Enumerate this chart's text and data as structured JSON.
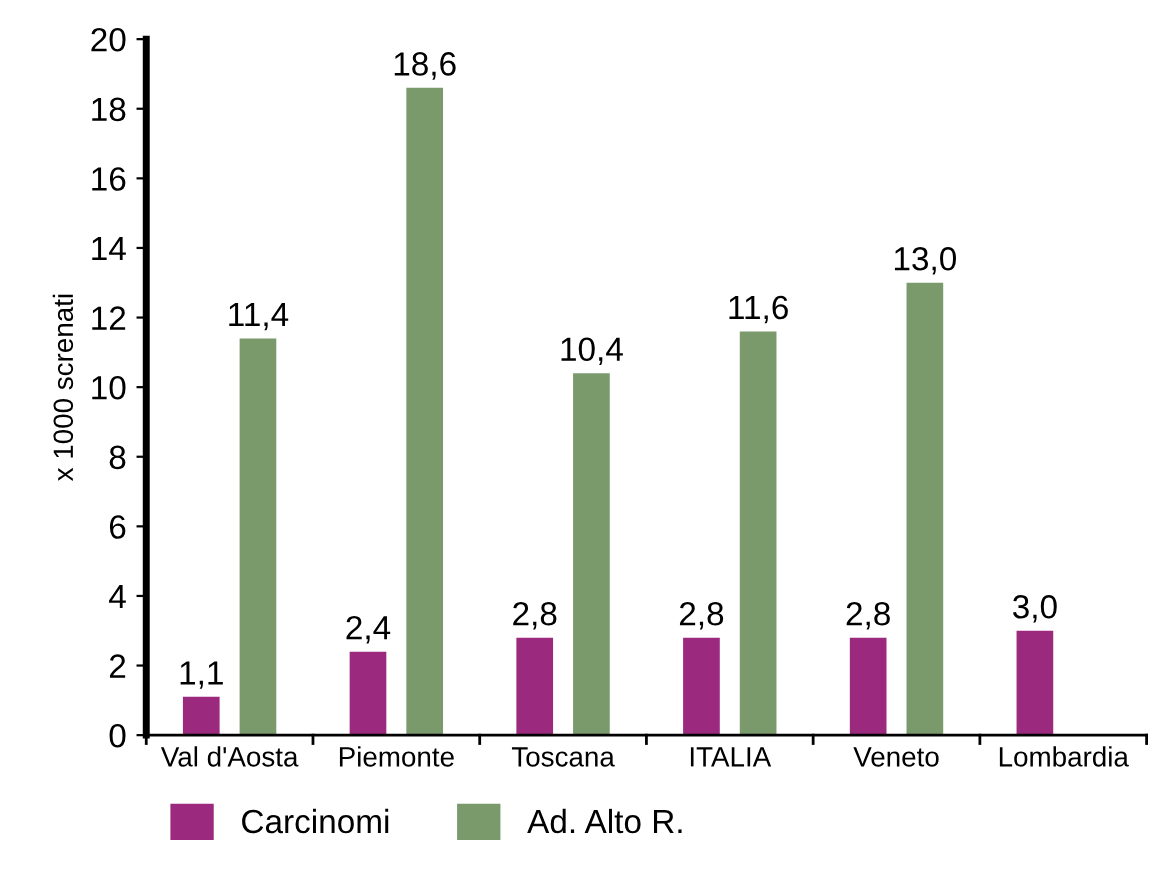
{
  "chart_data": {
    "type": "bar",
    "ylabel": "x 1000 screnati",
    "categories": [
      "Val d'Aosta",
      "Piemonte",
      "Toscana",
      "ITALIA",
      "Veneto",
      "Lombardia"
    ],
    "series": [
      {
        "name": "Carcinomi",
        "color": "#9b2a7e",
        "values": [
          1.1,
          2.4,
          2.8,
          2.8,
          2.8,
          3.0
        ],
        "value_labels": [
          "1,1",
          "2,4",
          "2,8",
          "2,8",
          "2,8",
          "3,0"
        ]
      },
      {
        "name": "Ad. Alto R.",
        "color": "#7a9a6c",
        "values": [
          11.4,
          18.6,
          10.4,
          11.6,
          13.0,
          null
        ],
        "value_labels": [
          "11,4",
          "18,6",
          "10,4",
          "11,6",
          "13,0",
          null
        ]
      }
    ],
    "ylim": [
      0,
      20
    ],
    "yticks": [
      0,
      2,
      4,
      6,
      8,
      10,
      12,
      14,
      16,
      18,
      20
    ],
    "grid": false,
    "legend": "bottom left"
  }
}
